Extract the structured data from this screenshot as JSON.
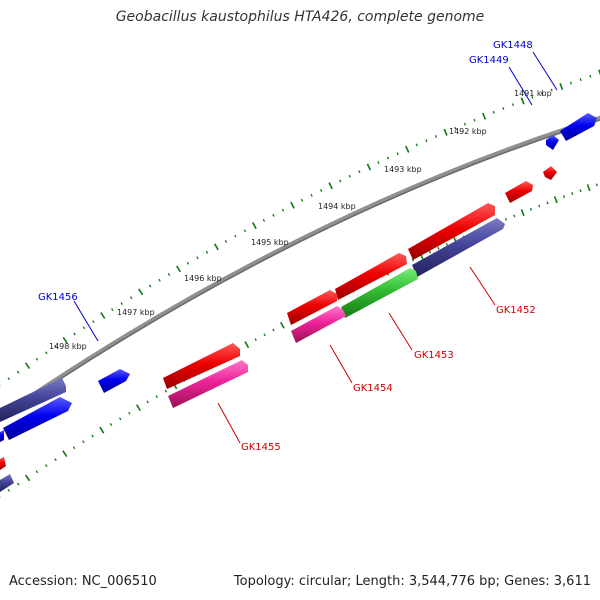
{
  "title": "Geobacillus kaustophilus HTA426, complete genome",
  "footer": {
    "accession": "Accession: NC_006510",
    "summary": "Topology: circular; Length: 3,544,776 bp; Genes: 3,611"
  },
  "kbp_labels": [
    "1491 kbp",
    "1492 kbp",
    "1493 kbp",
    "1494 kbp",
    "1495 kbp",
    "1496 kbp",
    "1497 kbp",
    "1498 kbp"
  ],
  "gene_labels": [
    {
      "text": "GK1448",
      "color": "#0000cc"
    },
    {
      "text": "GK1449",
      "color": "#0000cc"
    },
    {
      "text": "GK1452",
      "color": "#cc0000"
    },
    {
      "text": "GK1453",
      "color": "#cc0000"
    },
    {
      "text": "GK1454",
      "color": "#cc0000"
    },
    {
      "text": "GK1455",
      "color": "#cc0000"
    },
    {
      "text": "GK1456",
      "color": "#0000cc"
    }
  ],
  "colors": {
    "forward_gene": "#ee0000",
    "reverse_gene": "#0000ee",
    "rna_gene": "#ee2299",
    "orthologous": "#44449a",
    "highlight": "#33bb33",
    "backbone": "#808080",
    "ticks": "#117711"
  }
}
